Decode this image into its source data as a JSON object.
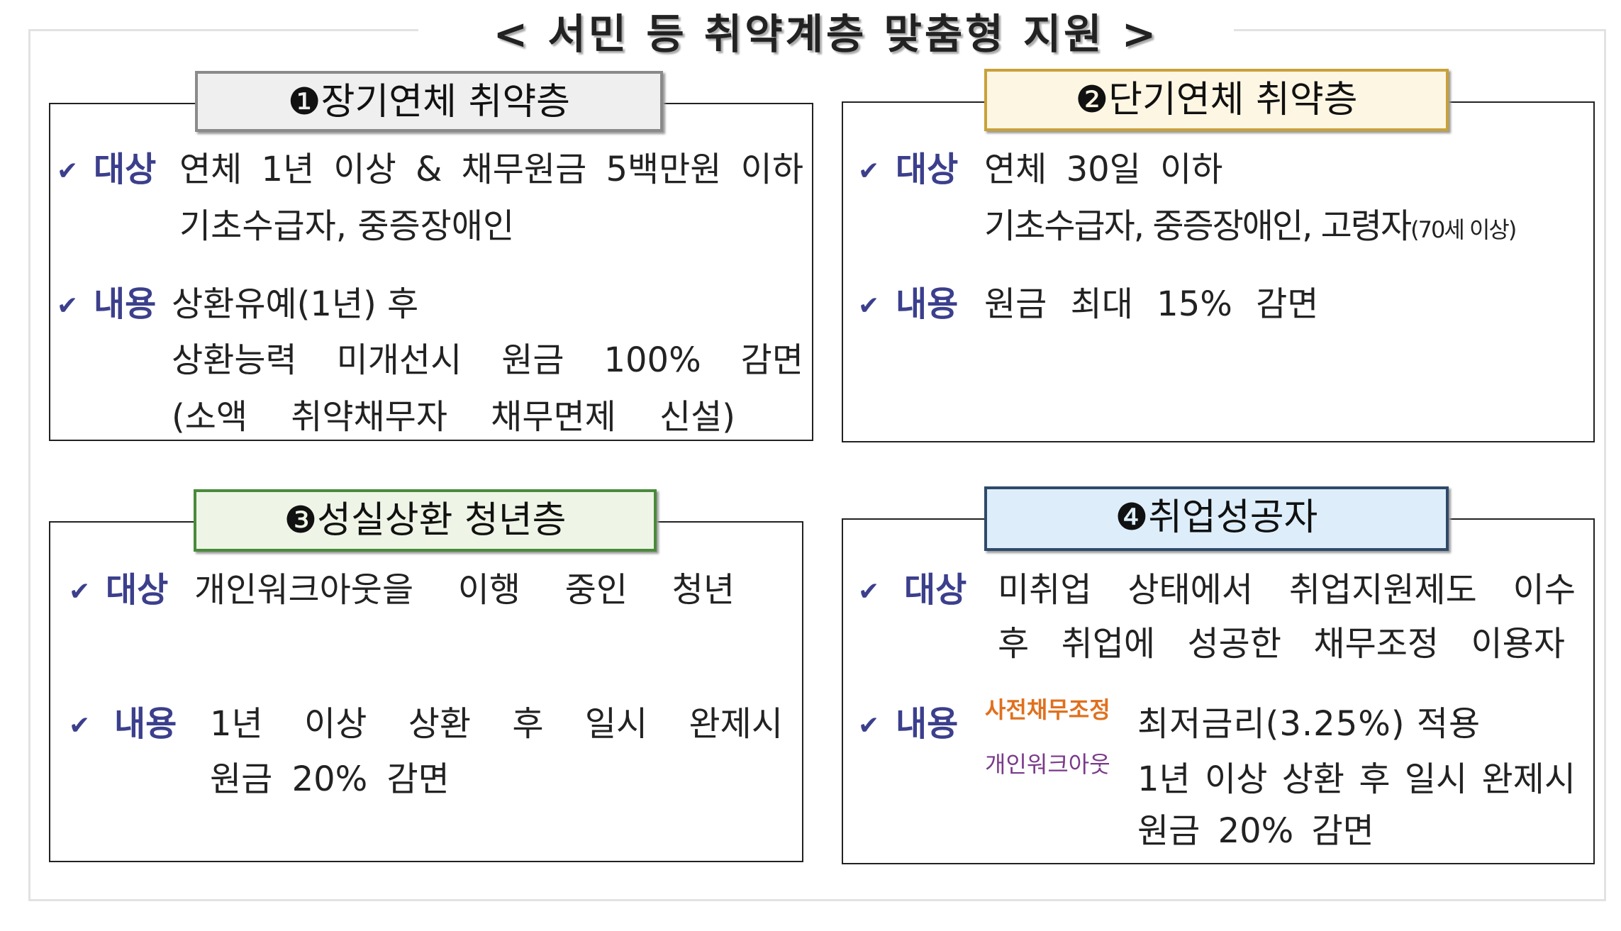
{
  "title": "< 서민 등 취약계층 맞춤형 지원 >",
  "check_icon": "✔",
  "boxes": [
    {
      "header": "❶장기연체 취약층",
      "header_fill": "#efefef",
      "header_border": "#8a8a8a",
      "target_label": "대상",
      "target_lines": [
        "연체 1년 이상 & 채무원금 5백만원 이하",
        "기초수급자, 중증장애인"
      ],
      "content_label": "내용",
      "content_lines": [
        "상환유예(1년) 후",
        "상환능력 미개선시 원금 100% 감면",
        "(소액 취약채무자 채무면제 신설)"
      ]
    },
    {
      "header": "❷단기연체 취약층",
      "header_fill": "#fdf6e3",
      "header_border": "#c9a13a",
      "target_label": "대상",
      "target_lines": [
        "연체 30일 이하",
        "기초수급자, 중증장애인, 고령자"
      ],
      "target_note": "(70세 이상)",
      "content_label": "내용",
      "content_lines": [
        "원금 최대 15% 감면"
      ]
    },
    {
      "header": "❸성실상환 청년층",
      "header_fill": "#eef5e6",
      "header_border": "#4a8a3a",
      "target_label": "대상",
      "target_lines": [
        "개인워크아웃을 이행 중인 청년"
      ],
      "content_label": "내용",
      "content_lines": [
        "1년 이상 상환 후 일시 완제시",
        "원금 20% 감면"
      ]
    },
    {
      "header": "❹취업성공자",
      "header_fill": "#ddeefa",
      "header_border": "#2f4a6a",
      "target_label": "대상",
      "target_lines": [
        "미취업 상태에서 취업지원제도 이수",
        "후 취업에 성공한 채무조정 이용자"
      ],
      "content_label": "내용",
      "sub_labels": [
        {
          "text": "사전채무조정",
          "color": "#e0701e"
        },
        {
          "text": "개인워크아웃",
          "color": "#7a3a8a"
        }
      ],
      "content_lines": [
        "최저금리(3.25%) 적용",
        "1년 이상 상환 후 일시 완제시",
        "원금 20% 감면"
      ]
    }
  ]
}
